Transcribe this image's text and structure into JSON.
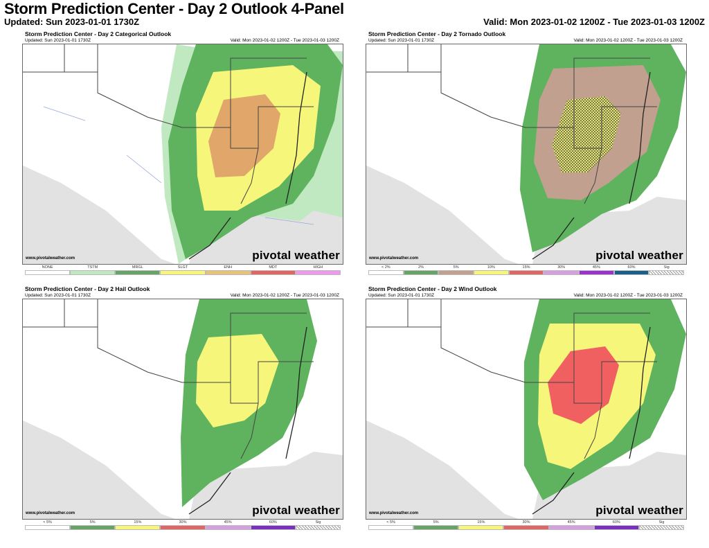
{
  "header": {
    "title": "Storm Prediction Center - Day 2 Outlook 4-Panel",
    "updated": "Updated: Sun 2023-01-01 1730Z",
    "valid": "Valid: Mon 2023-01-02 1200Z - Tue 2023-01-03 1200Z"
  },
  "panels": [
    {
      "title": "Storm Prediction Center - Day 2 Categorical Outlook",
      "updated": "Updated: Sun 2023-01-01 1730Z",
      "valid": "Valid: Mon 2023-01-02 1200Z - Tue 2023-01-03 1200Z",
      "credit": "www.pivotalweather.com",
      "brand": "pivotal weather",
      "risk_areas": [
        "TSTM",
        "MRGL",
        "SLGT",
        "ENH"
      ],
      "legend": [
        {
          "label": "NONE",
          "color": "#ffffff"
        },
        {
          "label": "TSTM",
          "color": "#c1e9c1"
        },
        {
          "label": "MRGL",
          "color": "#66a366"
        },
        {
          "label": "SLGT",
          "color": "#f6f67b"
        },
        {
          "label": "ENH",
          "color": "#e6c27a"
        },
        {
          "label": "MDT",
          "color": "#e06666"
        },
        {
          "label": "HIGH",
          "color": "#ee99ee"
        }
      ]
    },
    {
      "title": "Storm Prediction Center - Day 2 Tornado Outlook",
      "updated": "Updated: Sun 2023-01-01 1730Z",
      "valid": "Valid: Mon 2023-01-02 1200Z - Tue 2023-01-03 1200Z",
      "credit": "www.pivotalweather.com",
      "brand": "pivotal weather",
      "risk_areas": [
        "2%",
        "5%",
        "10%",
        "Sig"
      ],
      "legend": [
        {
          "label": "< 2%",
          "color": "#ffffff"
        },
        {
          "label": "2%",
          "color": "#66a366"
        },
        {
          "label": "5%",
          "color": "#c2a08f"
        },
        {
          "label": "10%",
          "color": "#f6f67b"
        },
        {
          "label": "15%",
          "color": "#e06666"
        },
        {
          "label": "30%",
          "color": "#d5a0e0"
        },
        {
          "label": "45%",
          "color": "#9933cc"
        },
        {
          "label": "60%",
          "color": "#1a5f8a"
        },
        {
          "label": "Sig",
          "color": "hatch"
        }
      ]
    },
    {
      "title": "Storm Prediction Center - Day 2 Hail Outlook",
      "updated": "Updated: Sun 2023-01-01 1730Z",
      "valid": "Valid: Mon 2023-01-02 1200Z - Tue 2023-01-03 1200Z",
      "credit": "www.pivotalweather.com",
      "brand": "pivotal weather",
      "risk_areas": [
        "5%",
        "15%"
      ],
      "legend": [
        {
          "label": "< 5%",
          "color": "#ffffff"
        },
        {
          "label": "5%",
          "color": "#66a366"
        },
        {
          "label": "15%",
          "color": "#f6f67b"
        },
        {
          "label": "30%",
          "color": "#e06666"
        },
        {
          "label": "45%",
          "color": "#d5a0e0"
        },
        {
          "label": "60%",
          "color": "#7b2fbf"
        },
        {
          "label": "Sig",
          "color": "hatch"
        }
      ]
    },
    {
      "title": "Storm Prediction Center - Day 2 Wind Outlook",
      "updated": "Updated: Sun 2023-01-01 1730Z",
      "valid": "Valid: Mon 2023-01-02 1200Z - Tue 2023-01-03 1200Z",
      "credit": "www.pivotalweather.com",
      "brand": "pivotal weather",
      "risk_areas": [
        "5%",
        "15%",
        "30%"
      ],
      "legend": [
        {
          "label": "< 5%",
          "color": "#ffffff"
        },
        {
          "label": "5%",
          "color": "#66a366"
        },
        {
          "label": "15%",
          "color": "#f6f67b"
        },
        {
          "label": "30%",
          "color": "#e06666"
        },
        {
          "label": "45%",
          "color": "#d5a0e0"
        },
        {
          "label": "60%",
          "color": "#7b2fbf"
        },
        {
          "label": "Sig",
          "color": "hatch"
        }
      ]
    }
  ],
  "colors": {
    "tstm": "#c1e9c1",
    "mrgl": "#5fb35f",
    "slgt": "#f6f67b",
    "enh": "#e0a66a",
    "tor5": "#c2a08f",
    "wind30": "#f06060",
    "gulf": "#e2e2e2"
  }
}
